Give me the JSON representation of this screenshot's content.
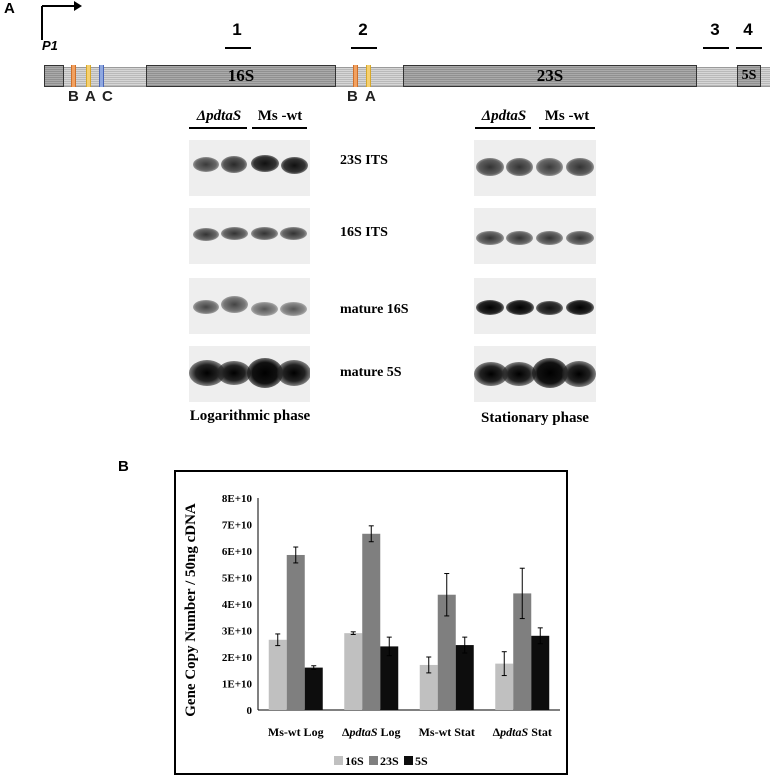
{
  "panel_a": {
    "label": "A",
    "promoter": "P1",
    "segments": [
      "1",
      "2",
      "3",
      "4"
    ],
    "rrna_boxes": [
      "16S",
      "23S",
      "5S"
    ],
    "box_letters_1": [
      "B",
      "A",
      "C"
    ],
    "box_letters_2": [
      "B",
      "A"
    ],
    "blot_groups": [
      {
        "strain1": "ΔpdtaS",
        "strain2": "Ms -wt",
        "phase": "Logarithmic phase"
      },
      {
        "strain1": "ΔpdtaS",
        "strain2": "Ms -wt",
        "phase": "Stationary phase"
      }
    ],
    "blot_rows": [
      "23S ITS",
      "16S ITS",
      "mature 16S",
      "mature 5S"
    ]
  },
  "panel_b": {
    "label": "B"
  },
  "chart_data": {
    "type": "bar",
    "categories": [
      "Ms-wt Log",
      "ΔpdtaS Log",
      "Ms-wt Stat",
      "ΔpdtaS Stat"
    ],
    "series": [
      {
        "name": "16S",
        "values": [
          26500000000.0,
          29000000000.0,
          17000000000.0,
          17500000000.0
        ],
        "errors": [
          2200000000.0,
          500000000.0,
          3000000000.0,
          4500000000.0
        ],
        "color": "#c0c0c0"
      },
      {
        "name": "23S",
        "values": [
          58500000000.0,
          66500000000.0,
          43500000000.0,
          44000000000.0
        ],
        "errors": [
          3000000000.0,
          3000000000.0,
          8000000000.0,
          9500000000.0
        ],
        "color": "#7f7f7f"
      },
      {
        "name": "5S",
        "values": [
          16000000000.0,
          24000000000.0,
          24500000000.0,
          28000000000.0
        ],
        "errors": [
          700000000.0,
          3500000000.0,
          3000000000.0,
          3000000000.0
        ],
        "color": "#0d0d0d"
      }
    ],
    "ylabel": "Gene Copy Number / 50ng cDNA",
    "ylim": [
      0,
      80000000000.0
    ],
    "yticks": [
      "0",
      "1E+10",
      "2E+10",
      "3E+10",
      "4E+10",
      "5E+10",
      "6E+10",
      "7E+10",
      "8E+10"
    ],
    "legend": [
      "16S",
      "23S",
      "5S"
    ],
    "legend_position": "bottom",
    "grid": false
  }
}
